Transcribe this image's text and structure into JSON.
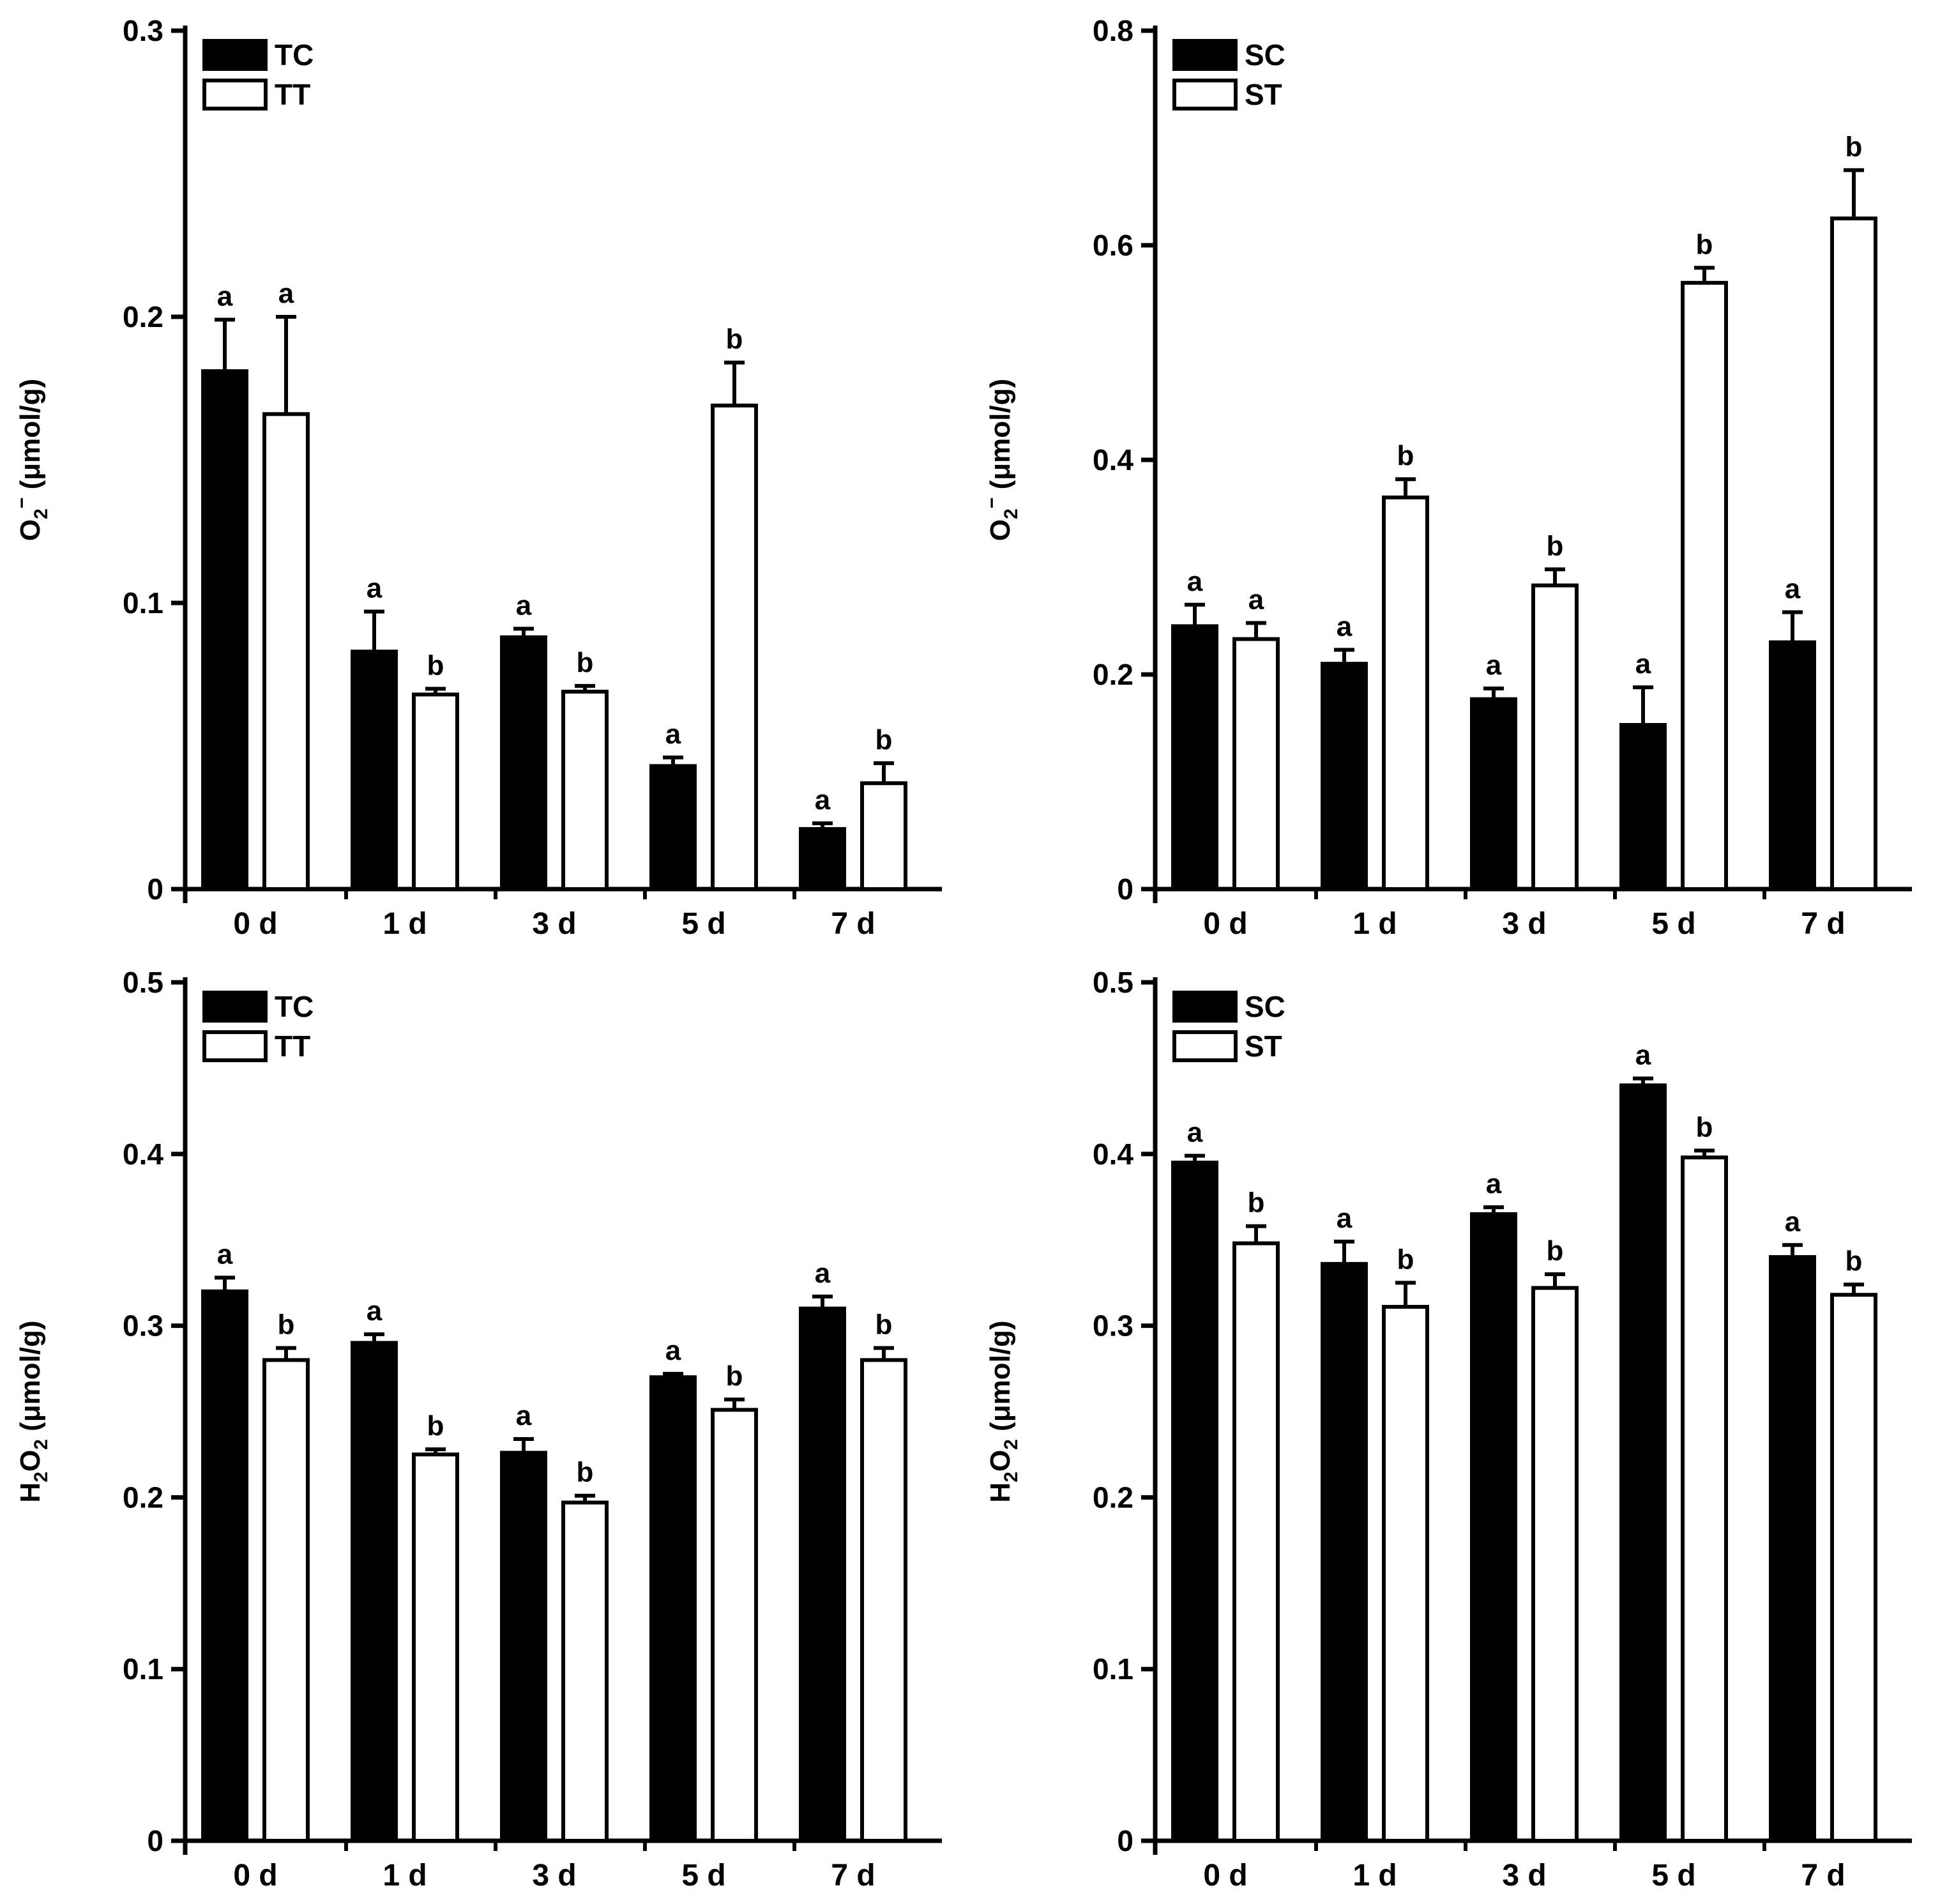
{
  "chart_data": [
    {
      "type": "bar",
      "panel": "top-left",
      "ylabel": "O₂⁻ (μmol/g)",
      "ylabel_parts": {
        "base": "O",
        "sub": "2",
        "sup": "−",
        "rest": " (μmol/g)"
      },
      "ylim": [
        0,
        0.3
      ],
      "yticks": [
        0,
        0.1,
        0.2,
        0.3
      ],
      "ytick_labels": [
        "0",
        "0.1",
        "0.2",
        "0.3"
      ],
      "categories": [
        "0 d",
        "1 d",
        "3 d",
        "5 d",
        "7 d"
      ],
      "legend_position": "top-left",
      "series": [
        {
          "name": "TC",
          "fill": "#000000",
          "values": [
            0.181,
            0.083,
            0.088,
            0.043,
            0.021
          ],
          "errors": [
            0.018,
            0.014,
            0.003,
            0.003,
            0.002
          ],
          "sig": [
            "a",
            "a",
            "a",
            "a",
            "a"
          ]
        },
        {
          "name": "TT",
          "fill": "#ffffff",
          "values": [
            0.166,
            0.068,
            0.069,
            0.169,
            0.037
          ],
          "errors": [
            0.034,
            0.002,
            0.002,
            0.015,
            0.007
          ],
          "sig": [
            "a",
            "b",
            "b",
            "b",
            "b"
          ]
        }
      ]
    },
    {
      "type": "bar",
      "panel": "top-right",
      "ylabel": "O₂⁻ (μmol/g)",
      "ylabel_parts": {
        "base": "O",
        "sub": "2",
        "sup": "−",
        "rest": " (μmol/g)"
      },
      "ylim": [
        0,
        0.8
      ],
      "yticks": [
        0,
        0.2,
        0.4,
        0.6,
        0.8
      ],
      "ytick_labels": [
        "0",
        "0.2",
        "0.4",
        "0.6",
        "0.8"
      ],
      "categories": [
        "0 d",
        "1 d",
        "3 d",
        "5 d",
        "7 d"
      ],
      "legend_position": "top-left",
      "series": [
        {
          "name": "SC",
          "fill": "#000000",
          "values": [
            0.245,
            0.21,
            0.177,
            0.153,
            0.23
          ],
          "errors": [
            0.02,
            0.013,
            0.01,
            0.035,
            0.028
          ],
          "sig": [
            "a",
            "a",
            "a",
            "a",
            "a"
          ]
        },
        {
          "name": "ST",
          "fill": "#ffffff",
          "values": [
            0.233,
            0.365,
            0.283,
            0.565,
            0.625
          ],
          "errors": [
            0.015,
            0.017,
            0.015,
            0.014,
            0.045
          ],
          "sig": [
            "a",
            "b",
            "b",
            "b",
            "b"
          ]
        }
      ]
    },
    {
      "type": "bar",
      "panel": "bottom-left",
      "ylabel": "H₂O₂ (μmol/g)",
      "ylabel_parts": {
        "base": "H",
        "sub": "2",
        "base2": "O",
        "sub2": "2",
        "rest": " (μmol/g)"
      },
      "ylim": [
        0,
        0.5
      ],
      "yticks": [
        0,
        0.1,
        0.2,
        0.3,
        0.4,
        0.5
      ],
      "ytick_labels": [
        "0",
        "0.1",
        "0.2",
        "0.3",
        "0.4",
        "0.5"
      ],
      "categories": [
        "0 d",
        "1 d",
        "3 d",
        "5 d",
        "7 d"
      ],
      "legend_position": "top-left",
      "series": [
        {
          "name": "TC",
          "fill": "#000000",
          "values": [
            0.32,
            0.29,
            0.226,
            0.27,
            0.31
          ],
          "errors": [
            0.008,
            0.005,
            0.008,
            0.002,
            0.007
          ],
          "sig": [
            "a",
            "a",
            "a",
            "a",
            "a"
          ]
        },
        {
          "name": "TT",
          "fill": "#ffffff",
          "values": [
            0.28,
            0.225,
            0.197,
            0.251,
            0.28
          ],
          "errors": [
            0.007,
            0.003,
            0.004,
            0.006,
            0.007
          ],
          "sig": [
            "b",
            "b",
            "b",
            "b",
            "b"
          ]
        }
      ]
    },
    {
      "type": "bar",
      "panel": "bottom-right",
      "ylabel": "H₂O₂ (μmol/g)",
      "ylabel_parts": {
        "base": "H",
        "sub": "2",
        "base2": "O",
        "sub2": "2",
        "rest": " (μmol/g)"
      },
      "ylim": [
        0,
        0.5
      ],
      "yticks": [
        0,
        0.1,
        0.2,
        0.3,
        0.4,
        0.5
      ],
      "ytick_labels": [
        "0",
        "0.1",
        "0.2",
        "0.3",
        "0.4",
        "0.5"
      ],
      "categories": [
        "0 d",
        "1 d",
        "3 d",
        "5 d",
        "7 d"
      ],
      "legend_position": "top-left",
      "series": [
        {
          "name": "SC",
          "fill": "#000000",
          "values": [
            0.395,
            0.336,
            0.365,
            0.44,
            0.34
          ],
          "errors": [
            0.004,
            0.013,
            0.004,
            0.004,
            0.007
          ],
          "sig": [
            "a",
            "a",
            "a",
            "a",
            "a"
          ]
        },
        {
          "name": "ST",
          "fill": "#ffffff",
          "values": [
            0.348,
            0.311,
            0.322,
            0.398,
            0.318
          ],
          "errors": [
            0.01,
            0.014,
            0.008,
            0.004,
            0.006
          ],
          "sig": [
            "b",
            "b",
            "b",
            "b",
            "b"
          ]
        }
      ]
    }
  ]
}
